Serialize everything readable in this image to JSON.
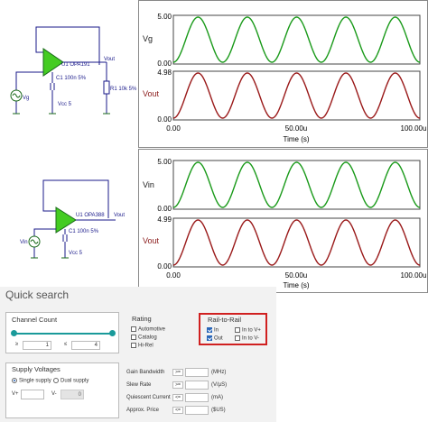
{
  "circuit1": {
    "opamp": "U1 OPA191",
    "vout": "Vout",
    "cap": "C1 100n 5%",
    "res": "R1 10k 5%",
    "source": "Vg",
    "supply": "Vcc 5"
  },
  "circuit2": {
    "opamp": "U1 OPA388",
    "vout": "Vout",
    "cap": "C1 100n 5%",
    "source": "Vin",
    "supply": "Vcc 5"
  },
  "plot1": {
    "top_label": "Vg",
    "bottom_label": "Vout",
    "top_ymax": "5.00",
    "top_ymin": "0.00",
    "bottom_ymax": "4.98",
    "bottom_ymin": "0.00",
    "x_start": "0.00",
    "x_mid": "50.00u",
    "x_end": "100.00u",
    "xlabel": "Time (s)"
  },
  "plot2": {
    "top_label": "Vin",
    "bottom_label": "Vout",
    "top_ymax": "5.00",
    "top_ymin": "0.00",
    "bottom_ymax": "4.99",
    "bottom_ymin": "0.00",
    "x_start": "0.00",
    "x_mid": "50.00u",
    "x_end": "100.00u",
    "xlabel": "Time (s)"
  },
  "colors": {
    "top_trace": "#1a9a1a",
    "bottom_trace": "#9a1a1a",
    "rail_border": "#d02020",
    "checkbox": "#2a66b8",
    "slider": "#1a9a9a"
  },
  "quick_search": {
    "title": "Quick search",
    "channel_count": {
      "label": "Channel Count",
      "min": "1",
      "max": "4",
      "ge": "≥",
      "le": "≤"
    },
    "rating": {
      "label": "Rating",
      "items": [
        {
          "label": "Automotive",
          "checked": false
        },
        {
          "label": "Catalog",
          "checked": false
        },
        {
          "label": "Hi-Rel",
          "checked": false
        }
      ]
    },
    "rail_to_rail": {
      "label": "Rail-to-Rail",
      "in": "In",
      "in_to_vplus": "In to V+",
      "out": "Out",
      "in_to_vminus": "In to V-"
    },
    "supply_voltages": {
      "label": "Supply Voltages",
      "single": "Single supply",
      "dual": "Dual supply",
      "vplus": "V+",
      "vminus": "V-",
      "vminus_value": "0"
    },
    "params": [
      {
        "label": "Gain Bandwidth",
        "op": ">=",
        "unit": "(MHz)"
      },
      {
        "label": "Slew Rate",
        "op": ">=",
        "unit": "(V/µS)"
      },
      {
        "label": "Quiescent Current",
        "op": "<=",
        "unit": "(mA)"
      },
      {
        "label": "Approx. Price",
        "op": "<=",
        "unit": "($US)"
      }
    ]
  }
}
